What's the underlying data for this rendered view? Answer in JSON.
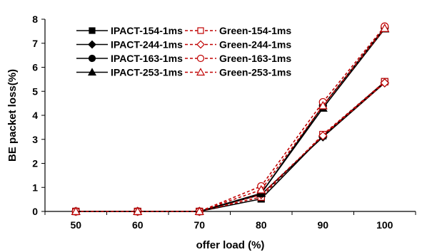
{
  "chart_data": {
    "type": "line",
    "title": "",
    "xlabel": "offer load (%)",
    "ylabel": "BE packet loss(%)",
    "x": [
      50,
      60,
      70,
      80,
      90,
      100
    ],
    "ylim": [
      0,
      8
    ],
    "yticks": [
      0,
      1,
      2,
      3,
      4,
      5,
      6,
      7,
      8
    ],
    "grid": false,
    "legend_position": "top-left",
    "series": [
      {
        "name": "IPACT-154-1ms",
        "values": [
          0,
          0,
          0,
          0.52,
          3.15,
          5.4
        ],
        "color": "#000000",
        "dash": "solid",
        "marker": "square",
        "fill": true
      },
      {
        "name": "Green-154-1ms",
        "values": [
          0,
          0,
          0,
          0.6,
          3.2,
          5.4
        ],
        "color": "#c00000",
        "dash": "dashed",
        "marker": "square",
        "fill": false
      },
      {
        "name": "IPACT-244-1ms",
        "values": [
          0,
          0,
          0,
          0.7,
          3.1,
          5.35
        ],
        "color": "#000000",
        "dash": "solid",
        "marker": "diamond",
        "fill": true
      },
      {
        "name": "Green-244-1ms",
        "values": [
          0,
          0,
          0,
          0.7,
          3.15,
          5.35
        ],
        "color": "#c00000",
        "dash": "dashed",
        "marker": "diamond",
        "fill": false
      },
      {
        "name": "IPACT-163-1ms",
        "values": [
          0,
          0,
          0,
          0.75,
          4.4,
          7.65
        ],
        "color": "#000000",
        "dash": "solid",
        "marker": "circle",
        "fill": true
      },
      {
        "name": "Green-163-1ms",
        "values": [
          0,
          0,
          0,
          1.05,
          4.55,
          7.7
        ],
        "color": "#c00000",
        "dash": "dashed",
        "marker": "circle",
        "fill": false
      },
      {
        "name": "IPACT-253-1ms",
        "values": [
          0,
          0,
          0,
          0.75,
          4.3,
          7.6
        ],
        "color": "#000000",
        "dash": "solid",
        "marker": "triangle",
        "fill": true
      },
      {
        "name": "Green-253-1ms",
        "values": [
          0,
          0,
          0,
          0.9,
          4.4,
          7.62
        ],
        "color": "#c00000",
        "dash": "dashed",
        "marker": "triangle",
        "fill": false
      }
    ]
  }
}
